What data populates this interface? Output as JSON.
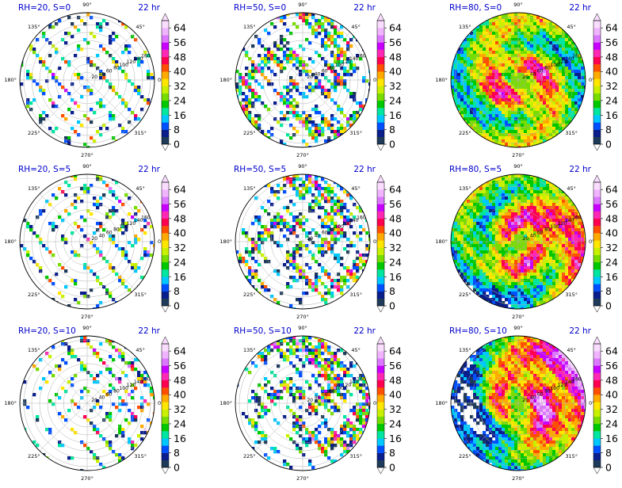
{
  "chart_data": [
    {
      "type": "heatmap",
      "title_left": "RH=20, S=0",
      "title_right": "22 hr",
      "rh": 20,
      "s": 0
    },
    {
      "type": "heatmap",
      "title_left": "RH=50, S=0",
      "title_right": "22 hr",
      "rh": 50,
      "s": 0
    },
    {
      "type": "heatmap",
      "title_left": "RH=80, S=0",
      "title_right": "22 hr",
      "rh": 80,
      "s": 0
    },
    {
      "type": "heatmap",
      "title_left": "RH=20, S=5",
      "title_right": "22 hr",
      "rh": 20,
      "s": 5
    },
    {
      "type": "heatmap",
      "title_left": "RH=50, S=5",
      "title_right": "22 hr",
      "rh": 50,
      "s": 5
    },
    {
      "type": "heatmap",
      "title_left": "RH=80, S=5",
      "title_right": "22 hr",
      "rh": 80,
      "s": 5
    },
    {
      "type": "heatmap",
      "title_left": "RH=20, S=10",
      "title_right": "22 hr",
      "rh": 20,
      "s": 10
    },
    {
      "type": "heatmap",
      "title_left": "RH=50, S=10",
      "title_right": "22 hr",
      "rh": 50,
      "s": 10
    },
    {
      "type": "heatmap",
      "title_left": "RH=80, S=10",
      "title_right": "22 hr",
      "rh": 80,
      "s": 10
    }
  ],
  "angle_labels": [
    "0°",
    "45°",
    "90°",
    "135°",
    "180°",
    "225°",
    "270°",
    "315°"
  ],
  "radial_labels": [
    "20",
    "40",
    "60",
    "80",
    "100",
    "120",
    "140",
    "160"
  ],
  "colorbar": {
    "ticks": [
      "0",
      "8",
      "16",
      "24",
      "32",
      "40",
      "48",
      "56",
      "64"
    ],
    "min": 0,
    "max": 68,
    "colors": [
      "#1e3b5a",
      "#0a1e8c",
      "#0050ff",
      "#00c8ff",
      "#00e6a0",
      "#00c800",
      "#78dc00",
      "#c8f000",
      "#ffe600",
      "#ffaa00",
      "#ff5000",
      "#ff0050",
      "#ff28b4",
      "#c800ff",
      "#dc78ff",
      "#f0b4ff",
      "#fadcff"
    ]
  },
  "colors": {
    "title_blue": "#0000cc",
    "grid": "#b0b0b0",
    "axis": "#000000"
  }
}
